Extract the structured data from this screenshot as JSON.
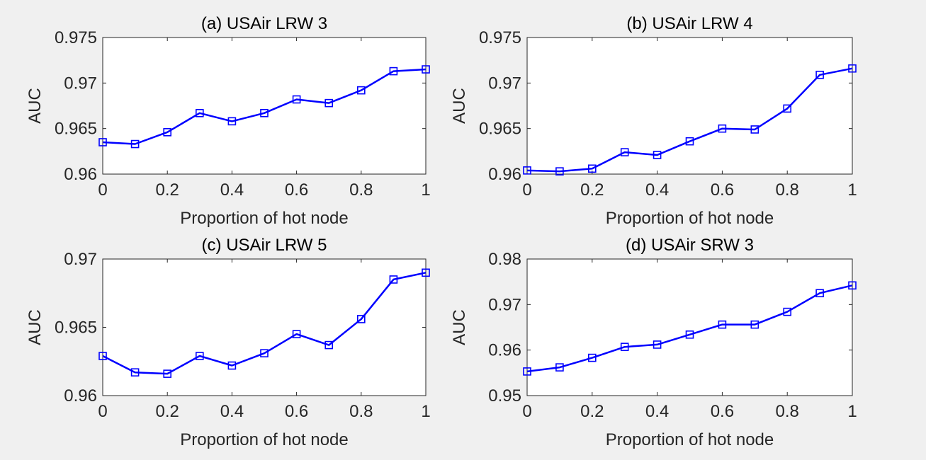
{
  "chart_data": [
    {
      "type": "line",
      "title": "(a) USAir LRW 3",
      "xlabel": "Proportion of hot node",
      "ylabel": "AUC",
      "xlim": [
        0,
        1
      ],
      "ylim": [
        0.96,
        0.975
      ],
      "xticks": [
        "0",
        "0.2",
        "0.4",
        "0.6",
        "0.8",
        "1"
      ],
      "yticks": [
        "0.96",
        "0.965",
        "0.97",
        "0.975"
      ],
      "grid": false,
      "color": "#0000ff",
      "marker": "square",
      "x": [
        0,
        0.1,
        0.2,
        0.3,
        0.4,
        0.5,
        0.6,
        0.7,
        0.8,
        0.9,
        1.0
      ],
      "y": [
        0.9635,
        0.9633,
        0.9646,
        0.9667,
        0.9658,
        0.9667,
        0.9682,
        0.9678,
        0.9692,
        0.9713,
        0.9715
      ]
    },
    {
      "type": "line",
      "title": "(b) USAir LRW 4",
      "xlabel": "Proportion of hot node",
      "ylabel": "AUC",
      "xlim": [
        0,
        1
      ],
      "ylim": [
        0.96,
        0.975
      ],
      "xticks": [
        "0",
        "0.2",
        "0.4",
        "0.6",
        "0.8",
        "1"
      ],
      "yticks": [
        "0.96",
        "0.965",
        "0.97",
        "0.975"
      ],
      "grid": false,
      "color": "#0000ff",
      "marker": "square",
      "x": [
        0,
        0.1,
        0.2,
        0.3,
        0.4,
        0.5,
        0.6,
        0.7,
        0.8,
        0.9,
        1.0
      ],
      "y": [
        0.9604,
        0.9603,
        0.9606,
        0.9624,
        0.9621,
        0.9636,
        0.965,
        0.9649,
        0.9672,
        0.9709,
        0.9716
      ]
    },
    {
      "type": "line",
      "title": "(c) USAir LRW 5",
      "xlabel": "Proportion of hot node",
      "ylabel": "AUC",
      "xlim": [
        0,
        1
      ],
      "ylim": [
        0.96,
        0.97
      ],
      "xticks": [
        "0",
        "0.2",
        "0.4",
        "0.6",
        "0.8",
        "1"
      ],
      "yticks": [
        "0.96",
        "0.965",
        "0.97"
      ],
      "grid": false,
      "color": "#0000ff",
      "marker": "square",
      "x": [
        0,
        0.1,
        0.2,
        0.3,
        0.4,
        0.5,
        0.6,
        0.7,
        0.8,
        0.9,
        1.0
      ],
      "y": [
        0.9629,
        0.9617,
        0.9616,
        0.9629,
        0.9622,
        0.9631,
        0.9645,
        0.9637,
        0.9656,
        0.9685,
        0.969
      ]
    },
    {
      "type": "line",
      "title": "(d) USAir SRW 3",
      "xlabel": "Proportion of hot node",
      "ylabel": "AUC",
      "xlim": [
        0,
        1
      ],
      "ylim": [
        0.95,
        0.98
      ],
      "xticks": [
        "0",
        "0.2",
        "0.4",
        "0.6",
        "0.8",
        "1"
      ],
      "yticks": [
        "0.95",
        "0.96",
        "0.97",
        "0.98"
      ],
      "grid": false,
      "color": "#0000ff",
      "marker": "square",
      "x": [
        0,
        0.1,
        0.2,
        0.3,
        0.4,
        0.5,
        0.6,
        0.7,
        0.8,
        0.9,
        1.0
      ],
      "y": [
        0.9553,
        0.9562,
        0.9583,
        0.9607,
        0.9612,
        0.9634,
        0.9656,
        0.9656,
        0.9684,
        0.9725,
        0.9742
      ]
    }
  ]
}
